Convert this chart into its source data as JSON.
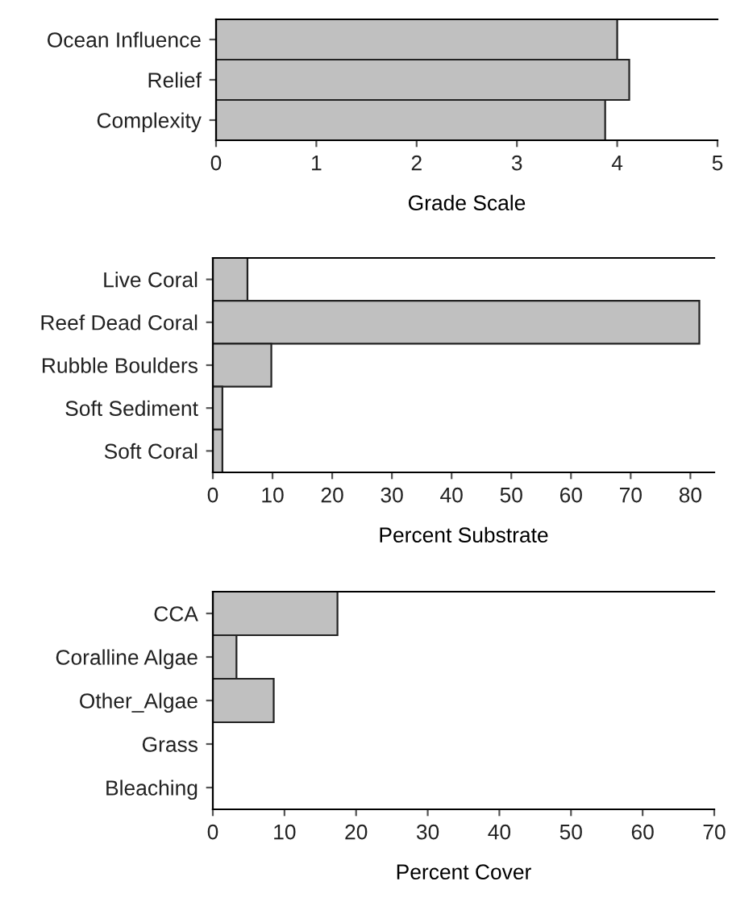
{
  "chart_data": [
    {
      "type": "bar",
      "orientation": "horizontal",
      "categories": [
        "Ocean Influence",
        "Relief",
        "Complexity"
      ],
      "values": [
        4.0,
        4.12,
        3.88
      ],
      "color": "#c0c0c0",
      "xlabel": "Grade Scale",
      "xlim": [
        0,
        5
      ],
      "xticks": [
        0,
        1,
        2,
        3,
        4,
        5
      ],
      "grid": false
    },
    {
      "type": "bar",
      "orientation": "horizontal",
      "categories": [
        "Live Coral",
        "Reef Dead Coral",
        "Rubble Boulders",
        "Soft Sediment",
        "Soft Coral"
      ],
      "values": [
        5.8,
        81.5,
        9.8,
        1.6,
        1.6
      ],
      "color": "#c0c0c0",
      "xlabel": "Percent Substrate",
      "xlim": [
        0,
        84
      ],
      "xticks": [
        0,
        10,
        20,
        30,
        40,
        50,
        60,
        70,
        80
      ],
      "grid": false
    },
    {
      "type": "bar",
      "orientation": "horizontal",
      "categories": [
        "CCA",
        "Coralline Algae",
        "Other_Algae",
        "Grass",
        "Bleaching"
      ],
      "values": [
        17.4,
        3.3,
        8.5,
        0,
        0
      ],
      "color": "#c0c0c0",
      "xlabel": "Percent Cover",
      "xlim": [
        0,
        70
      ],
      "xticks": [
        0,
        10,
        20,
        30,
        40,
        50,
        60,
        70
      ],
      "grid": false
    }
  ]
}
